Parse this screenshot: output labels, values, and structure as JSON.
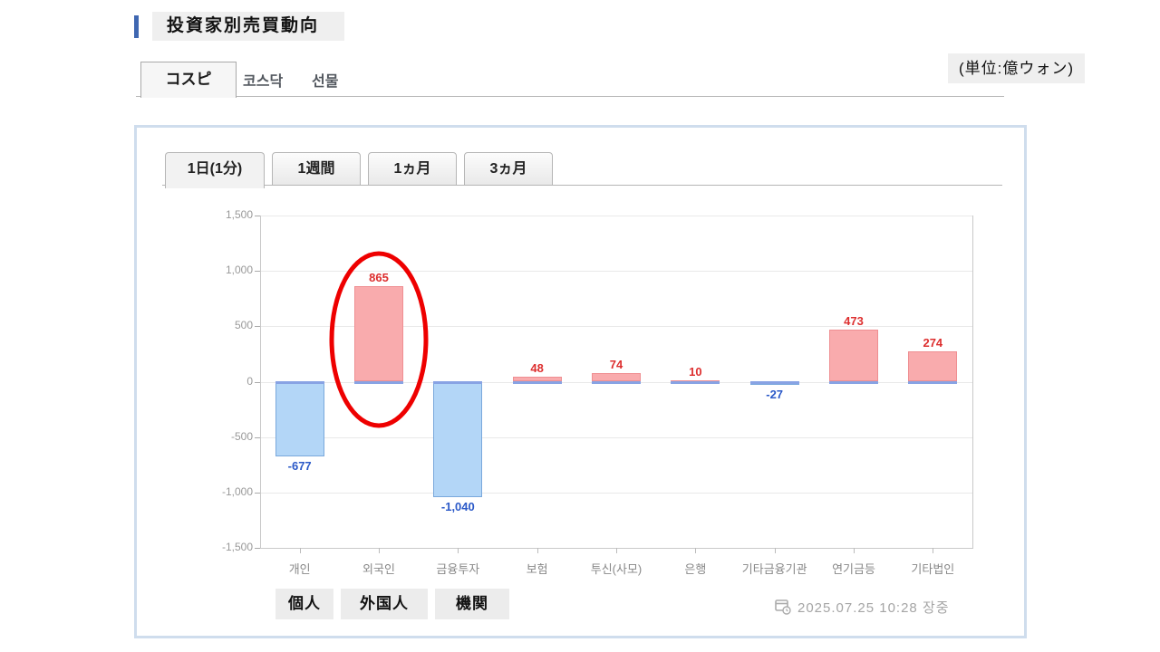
{
  "page": {
    "title": "投資家別売買動向",
    "unit_label": "(単位:億ウォン)"
  },
  "market_tabs": [
    {
      "label": "コスピ",
      "active": true
    },
    {
      "label": "코스닥",
      "active": false
    },
    {
      "label": "선물",
      "active": false
    }
  ],
  "period_tabs": [
    {
      "label": "1日(1分)",
      "active": true
    },
    {
      "label": "1週間",
      "active": false
    },
    {
      "label": "1ヵ月",
      "active": false
    },
    {
      "label": "3ヵ月",
      "active": false
    }
  ],
  "chart_data": {
    "type": "bar",
    "title": "投資家別売買動向 コスピ 1日(1分)",
    "unit": "億ウォン",
    "categories": [
      "개인",
      "외국인",
      "금융투자",
      "보험",
      "투신(사모)",
      "은행",
      "기타금융기관",
      "연기금등",
      "기타법인"
    ],
    "values": [
      -677,
      865,
      -1040,
      48,
      74,
      10,
      -27,
      473,
      274
    ],
    "value_labels": [
      "-677",
      "865",
      "-1,040",
      "48",
      "74",
      "10",
      "-27",
      "473",
      "274"
    ],
    "ylim": [
      -1500,
      1500
    ],
    "ytick_step": 500,
    "ytick_labels": [
      "1,500",
      "1,000",
      "500",
      "0",
      "-500",
      "-1,000",
      "-1,500"
    ],
    "grid": true,
    "legend": "none",
    "colors": {
      "positive_fill": "#f9abad",
      "positive_border": "#ef8f92",
      "positive_value": "#dd2f2f",
      "negative_fill": "#b3d6f7",
      "negative_border": "#7aa8dc",
      "negative_value": "#2b59c8",
      "baseline": "#88a3e4"
    },
    "annotation": {
      "shape": "ellipse",
      "category": "외국인",
      "color": "#ee0000"
    }
  },
  "overlay_labels": [
    {
      "label": "個人"
    },
    {
      "label": "外国人"
    },
    {
      "label": "機関"
    }
  ],
  "footer": {
    "icon": "calendar-clock-icon",
    "timestamp": "2025.07.25 10:28 장중"
  }
}
